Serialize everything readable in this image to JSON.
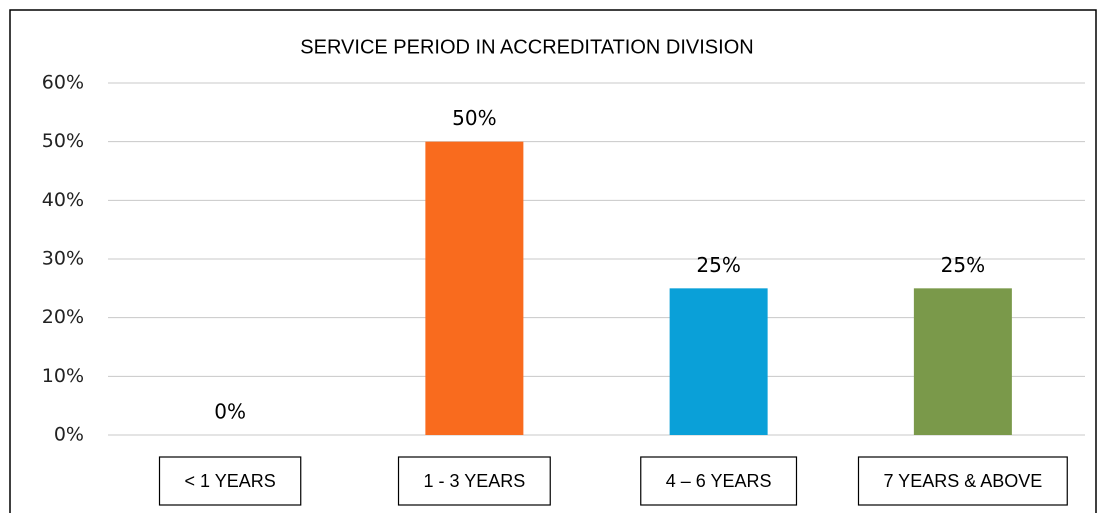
{
  "chart_data": {
    "type": "bar",
    "title": "SERVICE PERIOD IN ACCREDITATION DIVISION",
    "categories": [
      "< 1 YEARS",
      "1 - 3 YEARS",
      "4 – 6  YEARS",
      "7 YEARS & ABOVE"
    ],
    "values": [
      0,
      50,
      25,
      25
    ],
    "value_labels": [
      "0%",
      "50%",
      "25%",
      "25%"
    ],
    "colors": [
      "#f96b1e",
      "#f96b1e",
      "#0aa0d8",
      "#7a994a"
    ],
    "ylim": [
      0,
      60
    ],
    "yticks": [
      {
        "value": 0,
        "label": "0%"
      },
      {
        "value": 10,
        "label": "10%"
      },
      {
        "value": 20,
        "label": "20%"
      },
      {
        "value": 30,
        "label": "30%"
      },
      {
        "value": 40,
        "label": "40%"
      },
      {
        "value": 50,
        "label": "50%"
      },
      {
        "value": 60,
        "label": "60%"
      }
    ],
    "grid": true
  }
}
